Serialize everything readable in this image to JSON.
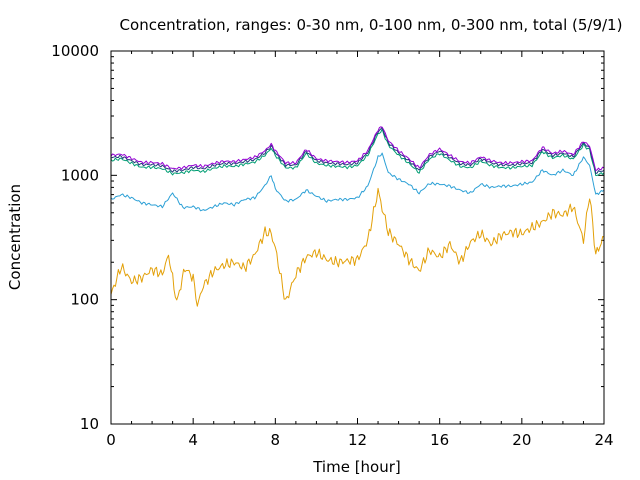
{
  "chart_data": {
    "type": "line",
    "title": "Concentration, ranges: 0-30 nm, 0-100 nm, 0-300 nm, total (5/9/1)",
    "xlabel": "Time [hour]",
    "ylabel": "Concentration",
    "xlim": [
      0,
      24
    ],
    "ylim": [
      10,
      10000
    ],
    "yscale": "log",
    "x_ticks": [
      0,
      4,
      8,
      12,
      16,
      20,
      24
    ],
    "x_tick_labels": [
      "0",
      "4",
      "8",
      "12",
      "16",
      "20",
      "24"
    ],
    "y_ticks": [
      10,
      100,
      1000,
      10000
    ],
    "y_tick_labels": [
      "10",
      "100",
      "1000",
      "10000"
    ],
    "grid": false,
    "legend": "none",
    "series": [
      {
        "color": "#e3a008",
        "x": [
          0,
          0.5,
          1,
          1.5,
          2,
          2.5,
          2.8,
          3.2,
          3.6,
          4,
          4.2,
          4.5,
          5,
          5.5,
          6,
          6.5,
          7,
          7.5,
          7.8,
          8,
          8.5,
          8.8,
          9,
          9.5,
          10,
          10.5,
          11,
          11.5,
          12,
          12.5,
          13,
          13.2,
          13.5,
          14,
          14.5,
          15,
          15.5,
          16,
          16.5,
          17,
          17.5,
          18,
          18.5,
          19,
          19.5,
          20,
          20.5,
          21,
          21.5,
          22,
          22.5,
          23,
          23.3,
          23.6,
          24
        ],
        "values": [
          110,
          185,
          140,
          150,
          175,
          160,
          230,
          95,
          180,
          150,
          90,
          130,
          170,
          190,
          200,
          180,
          230,
          350,
          340,
          260,
          95,
          130,
          160,
          220,
          240,
          210,
          200,
          205,
          210,
          300,
          750,
          550,
          350,
          280,
          210,
          170,
          250,
          220,
          280,
          200,
          290,
          340,
          280,
          330,
          350,
          340,
          380,
          420,
          500,
          480,
          560,
          300,
          700,
          230,
          320
        ]
      },
      {
        "color": "#2ca0d6",
        "x": [
          0,
          0.5,
          1,
          1.5,
          2,
          2.5,
          3,
          3.5,
          4,
          4.5,
          5,
          5.5,
          6,
          6.5,
          7,
          7.5,
          7.8,
          8,
          8.5,
          9,
          9.5,
          10,
          10.5,
          11,
          11.5,
          12,
          12.5,
          13,
          13.2,
          13.5,
          14,
          14.5,
          15,
          15.5,
          16,
          16.5,
          17,
          17.5,
          18,
          18.5,
          19,
          19.5,
          20,
          20.5,
          21,
          21.5,
          22,
          22.5,
          23,
          23.3,
          23.6,
          24
        ],
        "values": [
          640,
          700,
          660,
          600,
          580,
          560,
          720,
          550,
          560,
          520,
          560,
          600,
          580,
          640,
          660,
          830,
          1000,
          780,
          620,
          640,
          760,
          680,
          620,
          640,
          640,
          660,
          820,
          1400,
          1500,
          1050,
          930,
          850,
          720,
          860,
          850,
          820,
          760,
          720,
          850,
          800,
          820,
          820,
          850,
          880,
          1100,
          1000,
          1100,
          1000,
          1400,
          1200,
          700,
          760
        ]
      },
      {
        "color": "#009e73",
        "x": [
          0,
          0.5,
          1,
          1.5,
          2,
          2.5,
          3,
          3.5,
          4,
          4.5,
          5,
          5.5,
          6,
          6.5,
          7,
          7.5,
          7.8,
          8,
          8.5,
          9,
          9.5,
          10,
          10.5,
          11,
          11.5,
          12,
          12.5,
          13,
          13.2,
          13.5,
          14,
          14.5,
          15,
          15.5,
          16,
          16.5,
          17,
          17.5,
          18,
          18.5,
          19,
          19.5,
          20,
          20.5,
          21,
          21.5,
          22,
          22.5,
          23,
          23.3,
          23.6,
          24
        ],
        "values": [
          1320,
          1360,
          1250,
          1160,
          1160,
          1130,
          1030,
          1050,
          1100,
          1070,
          1140,
          1190,
          1180,
          1230,
          1280,
          1450,
          1650,
          1450,
          1150,
          1150,
          1500,
          1250,
          1200,
          1180,
          1160,
          1200,
          1450,
          2150,
          2300,
          1750,
          1450,
          1250,
          1050,
          1350,
          1500,
          1320,
          1180,
          1150,
          1300,
          1200,
          1150,
          1150,
          1180,
          1200,
          1550,
          1380,
          1450,
          1350,
          1750,
          1600,
          1000,
          1050
        ]
      },
      {
        "color": "#20387a",
        "x": [
          0,
          0.5,
          1,
          1.5,
          2,
          2.5,
          3,
          3.5,
          4,
          4.5,
          5,
          5.5,
          6,
          6.5,
          7,
          7.5,
          7.8,
          8,
          8.5,
          9,
          9.5,
          10,
          10.5,
          11,
          11.5,
          12,
          12.5,
          13,
          13.2,
          13.5,
          14,
          14.5,
          15,
          15.5,
          16,
          16.5,
          17,
          17.5,
          18,
          18.5,
          19,
          19.5,
          20,
          20.5,
          21,
          21.5,
          22,
          22.5,
          23,
          23.3,
          23.6,
          24
        ],
        "values": [
          1390,
          1420,
          1310,
          1220,
          1220,
          1190,
          1080,
          1100,
          1160,
          1130,
          1200,
          1250,
          1240,
          1290,
          1340,
          1520,
          1720,
          1520,
          1210,
          1210,
          1560,
          1310,
          1260,
          1240,
          1220,
          1260,
          1520,
          2250,
          2400,
          1830,
          1520,
          1310,
          1100,
          1410,
          1570,
          1390,
          1240,
          1210,
          1360,
          1260,
          1210,
          1210,
          1240,
          1260,
          1620,
          1440,
          1510,
          1410,
          1820,
          1660,
          1050,
          1100
        ]
      },
      {
        "color": "#9400d3",
        "x": [
          0,
          0.5,
          1,
          1.5,
          2,
          2.5,
          3,
          3.5,
          4,
          4.5,
          5,
          5.5,
          6,
          6.5,
          7,
          7.5,
          7.8,
          8,
          8.5,
          9,
          9.5,
          10,
          10.5,
          11,
          11.5,
          12,
          12.5,
          13,
          13.2,
          13.5,
          14,
          14.5,
          15,
          15.5,
          16,
          16.5,
          17,
          17.5,
          18,
          18.5,
          19,
          19.5,
          20,
          20.5,
          21,
          21.5,
          22,
          22.5,
          23,
          23.3,
          23.6,
          24
        ],
        "values": [
          1450,
          1480,
          1370,
          1270,
          1270,
          1240,
          1130,
          1150,
          1210,
          1180,
          1250,
          1300,
          1290,
          1340,
          1400,
          1580,
          1780,
          1580,
          1260,
          1260,
          1620,
          1360,
          1310,
          1290,
          1270,
          1310,
          1580,
          2330,
          2480,
          1900,
          1580,
          1360,
          1150,
          1470,
          1630,
          1450,
          1290,
          1260,
          1410,
          1310,
          1260,
          1260,
          1290,
          1310,
          1680,
          1500,
          1570,
          1470,
          1880,
          1720,
          1100,
          1150
        ]
      }
    ]
  }
}
